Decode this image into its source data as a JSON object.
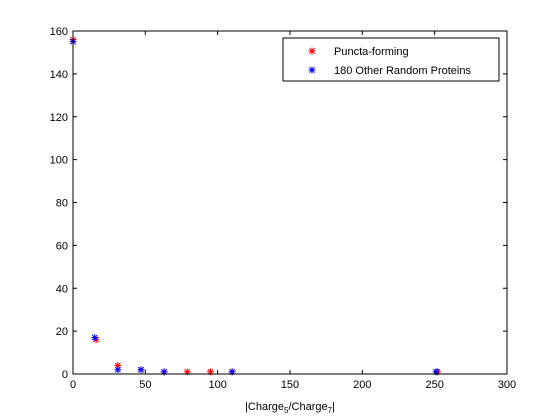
{
  "chart_data": {
    "type": "scatter",
    "title": "",
    "xlabel": {
      "prefix": "|Charge",
      "sub1": "5",
      "middle": "/Charge",
      "sub2": "7",
      "suffix": "|"
    },
    "ylabel": "",
    "xlim": [
      0,
      300
    ],
    "ylim": [
      0,
      160
    ],
    "xticks": [
      0,
      50,
      100,
      150,
      200,
      250,
      300
    ],
    "yticks": [
      0,
      20,
      40,
      60,
      80,
      100,
      120,
      140,
      160
    ],
    "grid": false,
    "legend_position": "top-right",
    "marker": "*",
    "series": [
      {
        "name": "Puncta-forming",
        "color": "#ff0000",
        "points": [
          {
            "x": 0,
            "y": 156
          },
          {
            "x": 16,
            "y": 16
          },
          {
            "x": 31,
            "y": 4
          },
          {
            "x": 47,
            "y": 2
          },
          {
            "x": 63,
            "y": 1
          },
          {
            "x": 79,
            "y": 1
          },
          {
            "x": 95,
            "y": 1
          },
          {
            "x": 110,
            "y": 1
          },
          {
            "x": 252,
            "y": 1
          }
        ]
      },
      {
        "name": "180 Other Random Proteins",
        "color": "#0000ff",
        "points": [
          {
            "x": 0,
            "y": 155
          },
          {
            "x": 15,
            "y": 17
          },
          {
            "x": 31,
            "y": 2
          },
          {
            "x": 47,
            "y": 2
          },
          {
            "x": 63,
            "y": 1
          },
          {
            "x": 110,
            "y": 1
          },
          {
            "x": 251,
            "y": 1
          }
        ]
      }
    ]
  }
}
